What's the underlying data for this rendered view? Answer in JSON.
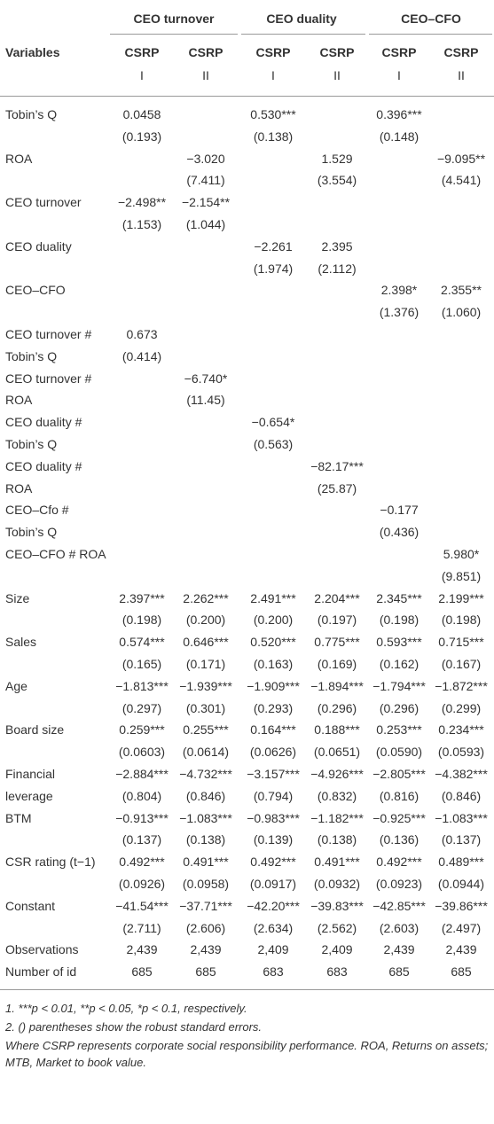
{
  "header": {
    "groups": [
      "CEO turnover",
      "CEO duality",
      "CEO–CFO"
    ],
    "variables": "Variables",
    "subheaders": [
      "CSRP",
      "CSRP",
      "CSRP",
      "CSRP",
      "CSRP",
      "CSRP"
    ],
    "models": [
      "I",
      "II",
      "I",
      "II",
      "I",
      "II"
    ]
  },
  "table": {
    "rows": [
      {
        "label": "Tobin’s Q",
        "cells": [
          "0.0458",
          null,
          "0.530***",
          null,
          "0.396***",
          null
        ]
      },
      {
        "label": null,
        "cells": [
          "(0.193)",
          null,
          "(0.138)",
          null,
          "(0.148)",
          null
        ]
      },
      {
        "label": "ROA",
        "cells": [
          null,
          "−3.020",
          null,
          "1.529",
          null,
          "−9.095**"
        ]
      },
      {
        "label": null,
        "cells": [
          null,
          "(7.411)",
          null,
          "(3.554)",
          null,
          "(4.541)"
        ]
      },
      {
        "label": "CEO turnover",
        "cells": [
          "−2.498**",
          "−2.154**",
          null,
          null,
          null,
          null
        ]
      },
      {
        "label": null,
        "cells": [
          "(1.153)",
          "(1.044)",
          null,
          null,
          null,
          null
        ]
      },
      {
        "label": "CEO duality",
        "cells": [
          null,
          null,
          "−2.261",
          "2.395",
          null,
          null
        ]
      },
      {
        "label": null,
        "cells": [
          null,
          null,
          "(1.974)",
          "(2.112)",
          null,
          null
        ]
      },
      {
        "label": "CEO–CFO",
        "cells": [
          null,
          null,
          null,
          null,
          "2.398*",
          "2.355**"
        ]
      },
      {
        "label": null,
        "cells": [
          null,
          null,
          null,
          null,
          "(1.376)",
          "(1.060)"
        ]
      },
      {
        "label": "CEO turnover #",
        "cells": [
          "0.673",
          null,
          null,
          null,
          null,
          null
        ]
      },
      {
        "label": "Tobin’s Q",
        "cells": [
          "(0.414)",
          null,
          null,
          null,
          null,
          null
        ]
      },
      {
        "label": "CEO turnover #",
        "cells": [
          null,
          "−6.740*",
          null,
          null,
          null,
          null
        ]
      },
      {
        "label": "ROA",
        "cells": [
          null,
          "(11.45)",
          null,
          null,
          null,
          null
        ]
      },
      {
        "label": "CEO duality #",
        "cells": [
          null,
          null,
          "−0.654*",
          null,
          null,
          null
        ]
      },
      {
        "label": "Tobin’s Q",
        "cells": [
          null,
          null,
          "(0.563)",
          null,
          null,
          null
        ]
      },
      {
        "label": "CEO duality #",
        "cells": [
          null,
          null,
          null,
          "−82.17***",
          null,
          null
        ]
      },
      {
        "label": "ROA",
        "cells": [
          null,
          null,
          null,
          "(25.87)",
          null,
          null
        ]
      },
      {
        "label": "CEO–Cfo #",
        "cells": [
          null,
          null,
          null,
          null,
          "−0.177",
          null
        ]
      },
      {
        "label": "Tobin’s Q",
        "cells": [
          null,
          null,
          null,
          null,
          "(0.436)",
          null
        ]
      },
      {
        "label": "CEO–CFO # ROA",
        "cells": [
          null,
          null,
          null,
          null,
          null,
          "5.980*"
        ]
      },
      {
        "label": null,
        "cells": [
          null,
          null,
          null,
          null,
          null,
          "(9.851)"
        ]
      },
      {
        "label": "Size",
        "cells": [
          "2.397***",
          "2.262***",
          "2.491***",
          "2.204***",
          "2.345***",
          "2.199***"
        ]
      },
      {
        "label": null,
        "cells": [
          "(0.198)",
          "(0.200)",
          "(0.200)",
          "(0.197)",
          "(0.198)",
          "(0.198)"
        ]
      },
      {
        "label": "Sales",
        "cells": [
          "0.574***",
          "0.646***",
          "0.520***",
          "0.775***",
          "0.593***",
          "0.715***"
        ]
      },
      {
        "label": null,
        "cells": [
          "(0.165)",
          "(0.171)",
          "(0.163)",
          "(0.169)",
          "(0.162)",
          "(0.167)"
        ]
      },
      {
        "label": "Age",
        "cells": [
          "−1.813***",
          "−1.939***",
          "−1.909***",
          "−1.894***",
          "−1.794***",
          "−1.872***"
        ]
      },
      {
        "label": null,
        "cells": [
          "(0.297)",
          "(0.301)",
          "(0.293)",
          "(0.296)",
          "(0.296)",
          "(0.299)"
        ]
      },
      {
        "label": "Board size",
        "cells": [
          "0.259***",
          "0.255***",
          "0.164***",
          "0.188***",
          "0.253***",
          "0.234***"
        ]
      },
      {
        "label": null,
        "cells": [
          "(0.0603)",
          "(0.0614)",
          "(0.0626)",
          "(0.0651)",
          "(0.0590)",
          "(0.0593)"
        ]
      },
      {
        "label": "Financial",
        "cells": [
          "−2.884***",
          "−4.732***",
          "−3.157***",
          "−4.926***",
          "−2.805***",
          "−4.382***"
        ]
      },
      {
        "label": "leverage",
        "cells": [
          "(0.804)",
          "(0.846)",
          "(0.794)",
          "(0.832)",
          "(0.816)",
          "(0.846)"
        ]
      },
      {
        "label": "BTM",
        "cells": [
          "−0.913***",
          "−1.083***",
          "−0.983***",
          "−1.182***",
          "−0.925***",
          "−1.083***"
        ]
      },
      {
        "label": null,
        "cells": [
          "(0.137)",
          "(0.138)",
          "(0.139)",
          "(0.138)",
          "(0.136)",
          "(0.137)"
        ]
      },
      {
        "label": "CSR rating (t−1)",
        "cells": [
          "0.492***",
          "0.491***",
          "0.492***",
          "0.491***",
          "0.492***",
          "0.489***"
        ]
      },
      {
        "label": null,
        "cells": [
          "(0.0926)",
          "(0.0958)",
          "(0.0917)",
          "(0.0932)",
          "(0.0923)",
          "(0.0944)"
        ]
      },
      {
        "label": "Constant",
        "cells": [
          "−41.54***",
          "−37.71***",
          "−42.20***",
          "−39.83***",
          "−42.85***",
          "−39.86***"
        ]
      },
      {
        "label": null,
        "cells": [
          "(2.711)",
          "(2.606)",
          "(2.634)",
          "(2.562)",
          "(2.603)",
          "(2.497)"
        ]
      },
      {
        "label": "Observations",
        "cells": [
          "2,439",
          "2,439",
          "2,409",
          "2,409",
          "2,439",
          "2,439"
        ]
      },
      {
        "label": "Number of id",
        "cells": [
          "685",
          "685",
          "683",
          "683",
          "685",
          "685"
        ]
      }
    ]
  },
  "notes": [
    "1. ***p < 0.01, **p < 0.05, *p < 0.1, respectively.",
    "2. () parentheses show the robust standard errors.",
    "Where CSRP represents corporate social responsibility performance. ROA, Returns on assets; MTB, Market to book value."
  ]
}
